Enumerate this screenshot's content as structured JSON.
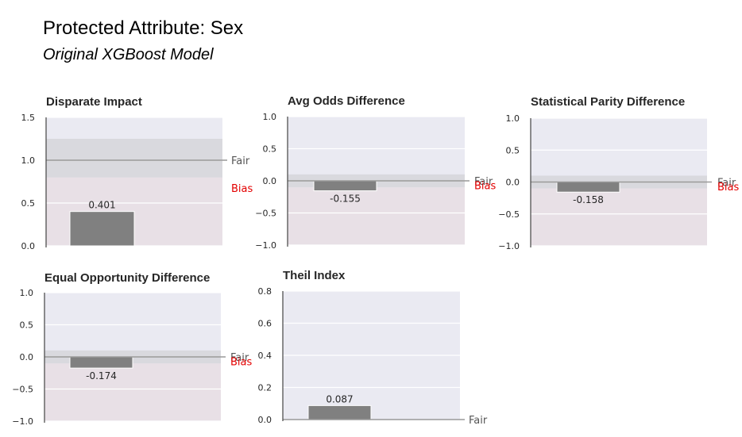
{
  "header": {
    "title": "Protected Attribute: Sex",
    "subtitle": "Original XGBoost Model"
  },
  "colors": {
    "background": "#eaeaf2",
    "bias_region": "#e8e0e6",
    "fair_band": "#d8d8dc",
    "bar": "#808080",
    "reference_line": "#999999",
    "bias_label": "#e30000"
  },
  "chart_data": [
    {
      "type": "bar",
      "title": "Disparate Impact",
      "values": [
        0.401
      ],
      "value_labels": [
        "0.401"
      ],
      "ylim": [
        0,
        1.5
      ],
      "yticks": [
        0,
        0.5,
        1.0,
        1.5
      ],
      "ytick_labels": [
        "0.0",
        "0.5",
        "1.0",
        "1.5"
      ],
      "fair_value": 1.0,
      "fair_band": [
        0.8,
        1.25
      ],
      "bias_region": [
        0,
        0.8
      ],
      "fair_label": "Fair",
      "bias_label": "Bias"
    },
    {
      "type": "bar",
      "title": "Avg Odds Difference",
      "values": [
        -0.155
      ],
      "value_labels": [
        "-0.155"
      ],
      "ylim": [
        -1.0,
        1.0
      ],
      "yticks": [
        -1.0,
        -0.5,
        0.0,
        0.5,
        1.0
      ],
      "ytick_labels": [
        "−1.0",
        "−0.5",
        "0.0",
        "0.5",
        "1.0"
      ],
      "fair_value": 0.0,
      "fair_band": [
        -0.1,
        0.1
      ],
      "bias_region": [
        -1.0,
        -0.1
      ],
      "fair_label": "Fair",
      "bias_label": "Bias"
    },
    {
      "type": "bar",
      "title": "Statistical Parity Difference",
      "values": [
        -0.158
      ],
      "value_labels": [
        "-0.158"
      ],
      "ylim": [
        -1.0,
        1.0
      ],
      "yticks": [
        -1.0,
        -0.5,
        0.0,
        0.5,
        1.0
      ],
      "ytick_labels": [
        "−1.0",
        "−0.5",
        "0.0",
        "0.5",
        "1.0"
      ],
      "fair_value": 0.0,
      "fair_band": [
        -0.1,
        0.1
      ],
      "bias_region": [
        -1.0,
        -0.1
      ],
      "fair_label": "Fair",
      "bias_label": "Bias"
    },
    {
      "type": "bar",
      "title": "Equal Opportunity Difference",
      "values": [
        -0.174
      ],
      "value_labels": [
        "-0.174"
      ],
      "ylim": [
        -1.0,
        1.0
      ],
      "yticks": [
        -1.0,
        -0.5,
        0.0,
        0.5,
        1.0
      ],
      "ytick_labels": [
        "−1.0",
        "−0.5",
        "0.0",
        "0.5",
        "1.0"
      ],
      "fair_value": 0.0,
      "fair_band": [
        -0.1,
        0.1
      ],
      "bias_region": [
        -1.0,
        -0.1
      ],
      "fair_label": "Fair",
      "bias_label": "Bias"
    },
    {
      "type": "bar",
      "title": "Theil Index",
      "values": [
        0.087
      ],
      "value_labels": [
        "0.087"
      ],
      "ylim": [
        0,
        0.8
      ],
      "yticks": [
        0,
        0.2,
        0.4,
        0.6,
        0.8
      ],
      "ytick_labels": [
        "0.0",
        "0.2",
        "0.4",
        "0.6",
        "0.8"
      ],
      "fair_value": 0.0,
      "fair_band": null,
      "bias_region": null,
      "fair_label": "Fair",
      "bias_label": ""
    }
  ]
}
